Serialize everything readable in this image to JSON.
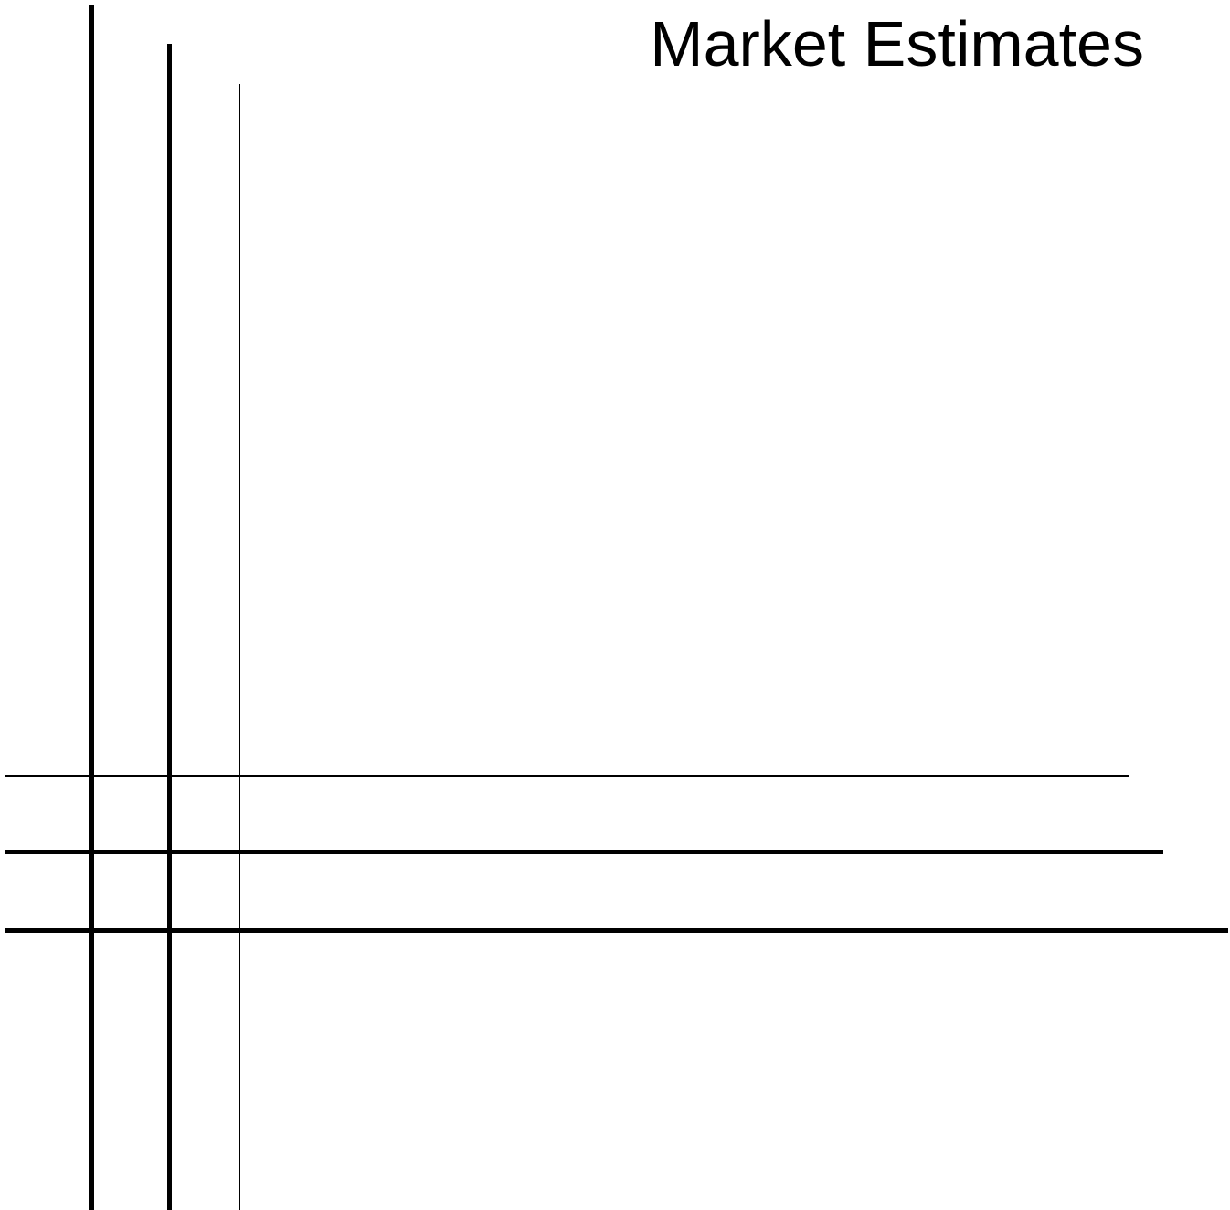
{
  "title": "Market Estimates",
  "colors": {
    "background": "#ffffff",
    "lines": "#000000",
    "text": "#000000"
  }
}
